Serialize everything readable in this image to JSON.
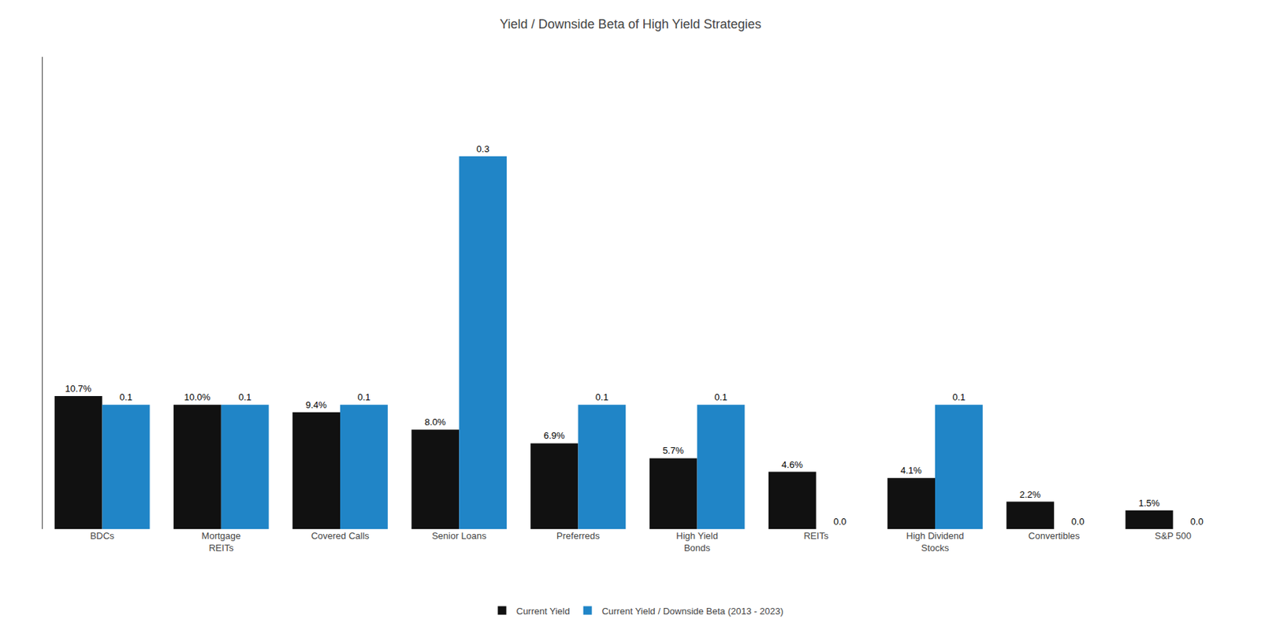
{
  "chart_data": {
    "type": "bar",
    "title": "Yield / Downside Beta of High Yield Strategies",
    "categories": [
      "BDCs",
      "Mortgage\nREITs",
      "Covered Calls",
      "Senior Loans",
      "Preferreds",
      "High Yield\nBonds",
      "REITs",
      "High Dividend\nStocks",
      "Convertibles",
      "S&P 500"
    ],
    "series": [
      {
        "name": "Current Yield",
        "color": "#111111",
        "values": [
          0.107,
          0.1,
          0.094,
          0.08,
          0.069,
          0.057,
          0.046,
          0.041,
          0.022,
          0.015
        ],
        "value_labels": [
          "10.7%",
          "10.0%",
          "9.4%",
          "8.0%",
          "6.9%",
          "5.7%",
          "4.6%",
          "4.1%",
          "2.2%",
          "1.5%"
        ]
      },
      {
        "name": "Current Yield / Downside Beta (2013 - 2023)",
        "color": "#2085c7",
        "values": [
          0.1,
          0.1,
          0.1,
          0.3,
          0.1,
          0.1,
          0.0,
          0.1,
          0.0,
          0.0
        ],
        "value_labels": [
          "0.1",
          "0.1",
          "0.1",
          "0.3",
          "0.1",
          "0.1",
          "0.0",
          "0.1",
          "0.0",
          "0.0"
        ]
      }
    ],
    "ylim": [
      0,
      0.38
    ],
    "grid": false,
    "legend": "bottom",
    "data_labels": true,
    "tick_labels": "x"
  }
}
